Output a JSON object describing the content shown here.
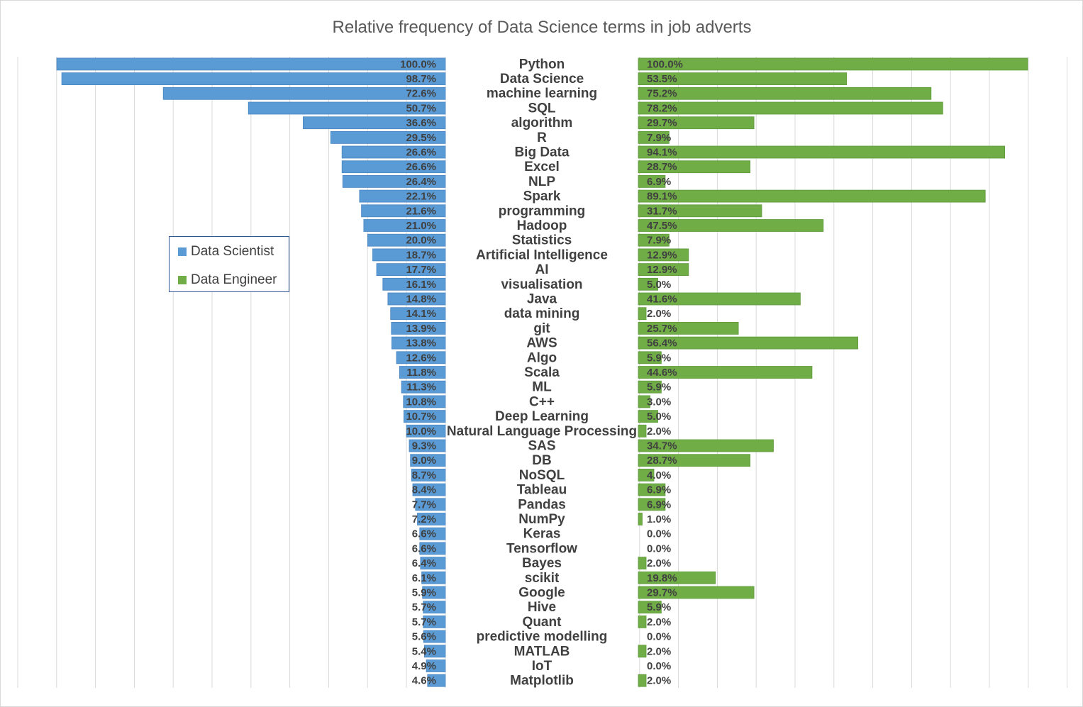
{
  "chart_data": {
    "type": "bar",
    "orientation": "horizontal",
    "title": "Relative frequency of Data Science terms in job adverts",
    "legend_position": "left",
    "colors": {
      "data_scientist": "#5b9bd5",
      "data_engineer": "#70ad47"
    },
    "categories": [
      "Python",
      "Data Science",
      "machine learning",
      "SQL",
      "algorithm",
      "R",
      "Big Data",
      "Excel",
      "NLP",
      "Spark",
      "programming",
      "Hadoop",
      "Statistics",
      "Artificial Intelligence",
      "AI",
      "visualisation",
      "Java",
      "data mining",
      "git",
      "AWS",
      "Algo",
      "Scala",
      "ML",
      "C++",
      "Deep Learning",
      "Natural Language Processing",
      "SAS",
      "DB",
      "NoSQL",
      "Tableau",
      "Pandas",
      "NumPy",
      "Keras",
      "Tensorflow",
      "Bayes",
      "scikit",
      "Google",
      "Hive",
      "Quant",
      "predictive modelling",
      "MATLAB",
      "IoT",
      "Matplotlib"
    ],
    "series": [
      {
        "name": "Data Scientist",
        "values": [
          100.0,
          98.7,
          72.6,
          50.7,
          36.6,
          29.5,
          26.6,
          26.6,
          26.4,
          22.1,
          21.6,
          21.0,
          20.0,
          18.7,
          17.7,
          16.1,
          14.8,
          14.1,
          13.9,
          13.8,
          12.6,
          11.8,
          11.3,
          10.8,
          10.7,
          10.0,
          9.3,
          9.0,
          8.7,
          8.4,
          7.7,
          7.2,
          6.6,
          6.6,
          6.4,
          6.1,
          5.9,
          5.7,
          5.7,
          5.6,
          5.4,
          4.9,
          4.6
        ],
        "labels": [
          "100.0%",
          "98.7%",
          "72.6%",
          "50.7%",
          "36.6%",
          "29.5%",
          "26.6%",
          "26.6%",
          "26.4%",
          "22.1%",
          "21.6%",
          "21.0%",
          "20.0%",
          "18.7%",
          "17.7%",
          "16.1%",
          "14.8%",
          "14.1%",
          "13.9%",
          "13.8%",
          "12.6%",
          "11.8%",
          "11.3%",
          "10.8%",
          "10.7%",
          "10.0%",
          "9.3%",
          "9.0%",
          "8.7%",
          "8.4%",
          "7.7%",
          "7.2%",
          "6.6%",
          "6.6%",
          "6.4%",
          "6.1%",
          "5.9%",
          "5.7%",
          "5.7%",
          "5.6%",
          "5.4%",
          "4.9%",
          "4.6%"
        ]
      },
      {
        "name": "Data Engineer",
        "values": [
          100.0,
          53.5,
          75.2,
          78.2,
          29.7,
          7.9,
          94.1,
          28.7,
          6.9,
          89.1,
          31.7,
          47.5,
          7.9,
          12.9,
          12.9,
          5.0,
          41.6,
          2.0,
          25.7,
          56.4,
          5.9,
          44.6,
          5.9,
          3.0,
          5.0,
          2.0,
          34.7,
          28.7,
          4.0,
          6.9,
          6.9,
          1.0,
          0.0,
          0.0,
          2.0,
          19.8,
          29.7,
          5.9,
          2.0,
          0.0,
          2.0,
          0.0,
          2.0
        ],
        "labels": [
          "100.0%",
          "53.5%",
          "75.2%",
          "78.2%",
          "29.7%",
          "7.9%",
          "94.1%",
          "28.7%",
          "6.9%",
          "89.1%",
          "31.7%",
          "47.5%",
          "7.9%",
          "12.9%",
          "12.9%",
          "5.0%",
          "41.6%",
          "2.0%",
          "25.7%",
          "56.4%",
          "5.9%",
          "44.6%",
          "5.9%",
          "3.0%",
          "5.0%",
          "2.0%",
          "34.7%",
          "28.7%",
          "4.0%",
          "6.9%",
          "6.9%",
          "1.0%",
          "0.0%",
          "0.0%",
          "2.0%",
          "19.8%",
          "29.7%",
          "5.9%",
          "2.0%",
          "0.0%",
          "2.0%",
          "0.0%",
          "2.0%"
        ]
      }
    ],
    "xlim": [
      0,
      100
    ],
    "grid": true
  }
}
